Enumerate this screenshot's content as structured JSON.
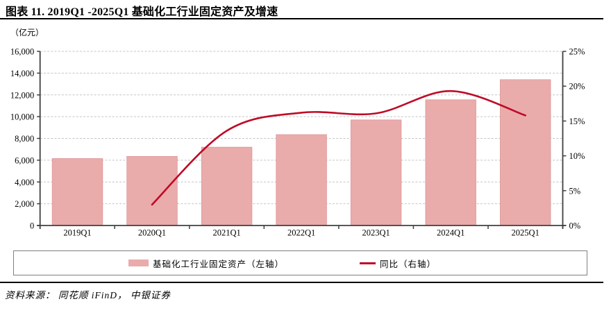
{
  "header": {
    "title": "图表 11. 2019Q1 -2025Q1 基础化工行业固定资产及增速"
  },
  "chart_data": {
    "type": "bar",
    "subtype": "bar+line combo",
    "unit_label": "（亿元）",
    "categories": [
      "2019Q1",
      "2020Q1",
      "2021Q1",
      "2022Q1",
      "2023Q1",
      "2024Q1",
      "2025Q1"
    ],
    "series": [
      {
        "name": "基础化工行业固定资产（左轴）",
        "type": "bar",
        "axis": "left",
        "values": [
          6150,
          6350,
          7200,
          8350,
          9700,
          11550,
          13400
        ]
      },
      {
        "name": "同比（右轴）",
        "type": "line",
        "axis": "right",
        "values": [
          null,
          3.0,
          13.6,
          16.2,
          16.1,
          19.3,
          15.8
        ]
      }
    ],
    "left_axis": {
      "min": 0,
      "max": 16000,
      "step": 2000,
      "tick_labels": [
        "0",
        "2,000",
        "4,000",
        "6,000",
        "8,000",
        "10,000",
        "12,000",
        "14,000",
        "16,000"
      ]
    },
    "right_axis": {
      "min": 0,
      "max": 25,
      "step": 5,
      "tick_labels": [
        "0%",
        "5%",
        "10%",
        "15%",
        "20%",
        "25%"
      ]
    },
    "grid": true,
    "legend_position": "bottom"
  },
  "legend": {
    "bar_label": "基础化工行业固定资产（左轴）",
    "line_label": "同比（右轴）"
  },
  "footer": {
    "source": "资料来源： 同花顺 iFinD， 中银证券"
  },
  "colors": {
    "bar": "#eaabab",
    "bar_edge": "#dd999b",
    "line": "#bf0a26",
    "grid": "#c4c4c4",
    "axis": "#3f3f3f",
    "text": "#000000"
  }
}
